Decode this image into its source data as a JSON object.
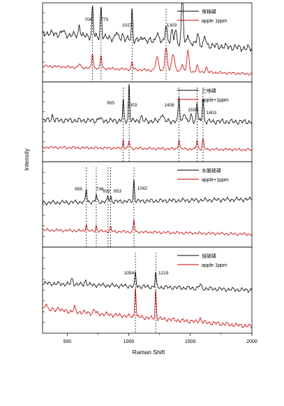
{
  "figure": {
    "xlabel": "Raman Shift",
    "ylabel": "Intensity",
    "xlim": [
      300,
      2000
    ],
    "x_ticks": [
      500,
      1000,
      1500,
      2000
    ]
  },
  "colors": {
    "black": "#000000",
    "red": "#cc0000",
    "frame": "#000000"
  },
  "chart_data": [
    {
      "type": "line",
      "title": "",
      "xlabel": "Raman Shift",
      "ylabel": "Intensity",
      "xlim": [
        300,
        2000
      ],
      "legend_position": "top-right",
      "series": [
        {
          "name": "保棉磷",
          "color": "#000000",
          "baseline": 0.62,
          "base_right": 0.42,
          "noise": 0.05,
          "peaks": [
            [
              465,
              0.05,
              8
            ],
            [
              600,
              0.14,
              7
            ],
            [
              706,
              0.38,
              6
            ],
            [
              775,
              0.38,
              6
            ],
            [
              900,
              0.08,
              8
            ],
            [
              950,
              0.06,
              8
            ],
            [
              1027,
              0.38,
              5
            ],
            [
              1120,
              0.06,
              8
            ],
            [
              1230,
              0.12,
              10
            ],
            [
              1303,
              0.24,
              8
            ],
            [
              1350,
              0.14,
              8
            ],
            [
              1380,
              0.18,
              8
            ],
            [
              1435,
              0.72,
              7
            ],
            [
              1480,
              0.14,
              8
            ],
            [
              1560,
              0.16,
              8
            ],
            [
              1620,
              0.1,
              8
            ]
          ]
        },
        {
          "name": "apple 1ppm",
          "color": "#cc0000",
          "baseline": 0.2,
          "base_right": 0.1,
          "noise": 0.02,
          "peaks": [
            [
              600,
              0.05,
              7
            ],
            [
              706,
              0.18,
              6
            ],
            [
              775,
              0.16,
              6
            ],
            [
              1027,
              0.1,
              6
            ],
            [
              1230,
              0.16,
              12
            ],
            [
              1303,
              0.28,
              10
            ],
            [
              1360,
              0.22,
              12
            ],
            [
              1435,
              0.1,
              8
            ],
            [
              1480,
              0.26,
              9
            ],
            [
              1555,
              0.08,
              8
            ],
            [
              1630,
              0.06,
              8
            ]
          ]
        }
      ],
      "marker_lines": [
        706,
        775,
        1027,
        1303
      ],
      "peak_labels": [
        "706",
        "775",
        "1027",
        "1303"
      ]
    },
    {
      "type": "line",
      "title": "",
      "xlabel": "Raman Shift",
      "ylabel": "Intensity",
      "xlim": [
        300,
        2000
      ],
      "legend_position": "top-right",
      "series": [
        {
          "name": "三唑磷",
          "color": "#000000",
          "baseline": 0.52,
          "base_right": 0.5,
          "noise": 0.04,
          "peaks": [
            [
              380,
              0.06,
              8
            ],
            [
              760,
              0.04,
              8
            ],
            [
              955,
              0.24,
              5
            ],
            [
              1003,
              0.46,
              5
            ],
            [
              1100,
              0.06,
              8
            ],
            [
              1270,
              0.1,
              10
            ],
            [
              1408,
              0.3,
              6
            ],
            [
              1450,
              0.12,
              8
            ],
            [
              1510,
              0.08,
              8
            ],
            [
              1555,
              0.24,
              6
            ],
            [
              1603,
              0.3,
              6
            ]
          ]
        },
        {
          "name": "apple+1ppm",
          "color": "#cc0000",
          "baseline": 0.18,
          "base_right": 0.15,
          "noise": 0.02,
          "peaks": [
            [
              955,
              0.1,
              5
            ],
            [
              1003,
              0.1,
              5
            ],
            [
              1408,
              0.12,
              6
            ],
            [
              1555,
              0.12,
              6
            ],
            [
              1603,
              0.12,
              6
            ]
          ]
        }
      ],
      "marker_lines": [
        955,
        1003,
        1408,
        1555,
        1603
      ],
      "peak_labels": [
        "955",
        "1003",
        "1408",
        "1555",
        "1603"
      ]
    },
    {
      "type": "line",
      "title": "",
      "xlabel": "Raman Shift",
      "ylabel": "Intensity",
      "xlim": [
        300,
        2000
      ],
      "legend_position": "top-right",
      "series": [
        {
          "name": "水胺硫磷",
          "color": "#000000",
          "baseline": 0.52,
          "base_right": 0.56,
          "noise": 0.03,
          "peaks": [
            [
              655,
              0.16,
              5
            ],
            [
              736,
              0.08,
              5
            ],
            [
              832,
              0.06,
              5
            ],
            [
              853,
              0.06,
              5
            ],
            [
              1042,
              0.24,
              5
            ]
          ]
        },
        {
          "name": "apple+1ppm",
          "color": "#cc0000",
          "baseline": 0.2,
          "base_right": 0.15,
          "noise": 0.02,
          "peaks": [
            [
              655,
              0.08,
              5
            ],
            [
              736,
              0.06,
              5
            ],
            [
              853,
              0.05,
              5
            ],
            [
              1042,
              0.14,
              5
            ]
          ]
        }
      ],
      "marker_lines": [
        655,
        736,
        832,
        853,
        1042
      ],
      "peak_labels": [
        "655",
        "736",
        "832",
        "853",
        "1042"
      ]
    },
    {
      "type": "line",
      "title": "",
      "xlabel": "Raman Shift",
      "ylabel": "Intensity",
      "xlim": [
        300,
        2000
      ],
      "legend_position": "top-right",
      "series": [
        {
          "name": "倍硫磷",
          "color": "#000000",
          "baseline": 0.58,
          "base_right": 0.5,
          "noise": 0.03,
          "peaks": [
            [
              540,
              0.06,
              8
            ],
            [
              650,
              0.05,
              8
            ],
            [
              1054,
              0.16,
              5
            ],
            [
              1219,
              0.16,
              5
            ],
            [
              1580,
              0.04,
              10
            ]
          ]
        },
        {
          "name": "apple 1ppm",
          "color": "#cc0000",
          "baseline": 0.28,
          "base_right": 0.08,
          "noise": 0.03,
          "peaks": [
            [
              330,
              0.08,
              8
            ],
            [
              430,
              0.04,
              8
            ],
            [
              560,
              0.05,
              8
            ],
            [
              720,
              0.04,
              8
            ],
            [
              1054,
              0.36,
              5
            ],
            [
              1219,
              0.32,
              5
            ],
            [
              1580,
              0.04,
              10
            ]
          ]
        }
      ],
      "marker_lines": [
        1054,
        1219
      ],
      "peak_labels": [
        "1054",
        "1219"
      ]
    }
  ]
}
